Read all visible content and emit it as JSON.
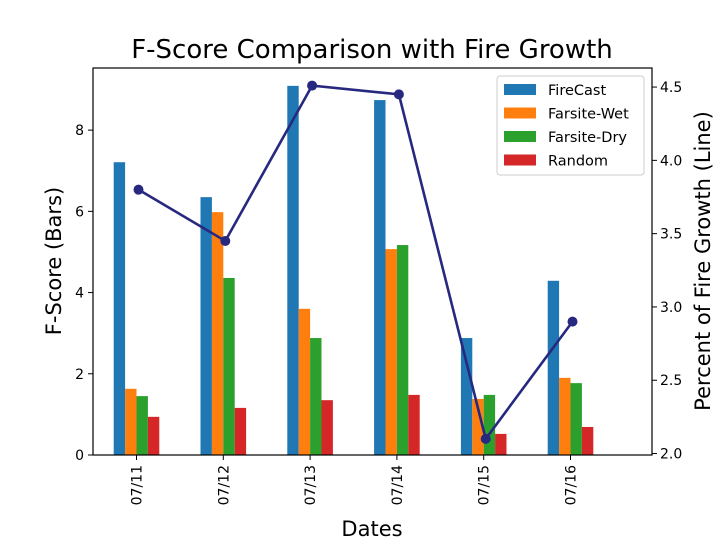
{
  "chart_data": {
    "type": "bar",
    "title": "F-Score Comparison with Fire Growth",
    "xlabel": "Dates",
    "ylabel": "F-Score (Bars)",
    "y2label": "Percent of Fire Growth (Line)",
    "categories": [
      "07/11",
      "07/12",
      "07/13",
      "07/14",
      "07/15",
      "07/16"
    ],
    "series": [
      {
        "name": "FireCast",
        "type": "bar",
        "axis": "left",
        "color": "#1f77b4",
        "values": [
          7.21,
          6.35,
          9.09,
          8.74,
          2.88,
          4.29
        ]
      },
      {
        "name": "Farsite-Wet",
        "type": "bar",
        "axis": "left",
        "color": "#ff7f0e",
        "values": [
          1.63,
          5.98,
          3.6,
          5.07,
          1.38,
          1.9
        ]
      },
      {
        "name": "Farsite-Dry",
        "type": "bar",
        "axis": "left",
        "color": "#2ca02c",
        "values": [
          1.45,
          4.36,
          2.88,
          5.17,
          1.48,
          1.77
        ]
      },
      {
        "name": "Random",
        "type": "bar",
        "axis": "left",
        "color": "#d62728",
        "values": [
          0.94,
          1.16,
          1.35,
          1.48,
          0.52,
          0.69
        ]
      },
      {
        "name": "Fire Growth",
        "type": "line",
        "axis": "right",
        "color": "#27287f",
        "marker": "circle",
        "values": [
          3.8,
          3.45,
          4.51,
          4.45,
          2.1,
          2.9
        ]
      }
    ],
    "ylim": [
      0,
      9.53
    ],
    "y2lim": [
      1.99,
      4.63
    ],
    "yticks": [
      0,
      2,
      4,
      6,
      8
    ],
    "y2ticks": [
      "2.0",
      "2.5",
      "3.0",
      "3.5",
      "4.0",
      "4.5"
    ],
    "xtick_rotation": 90,
    "legend": {
      "position": "upper right",
      "entries": [
        "FireCast",
        "Farsite-Wet",
        "Farsite-Dry",
        "Random"
      ]
    },
    "grid": false
  }
}
